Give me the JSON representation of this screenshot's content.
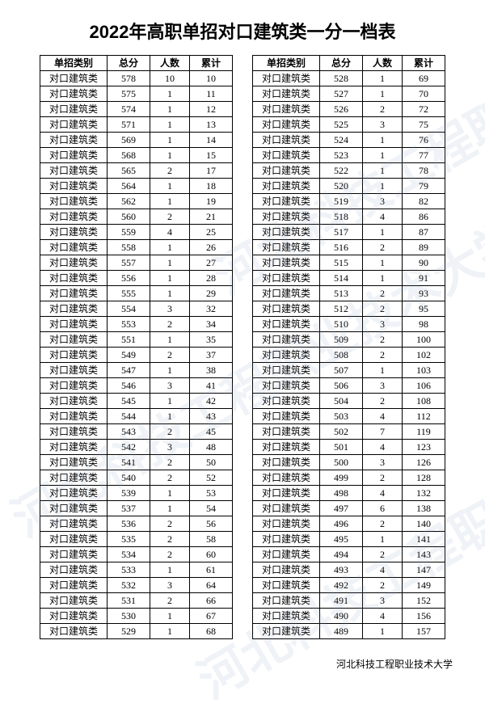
{
  "title": "2022年高职单招对口建筑类一分一档表",
  "footer": "河北科技工程职业技术大学",
  "watermark_text": "河北科技工程职业技术大学",
  "headers": {
    "category": "单招类别",
    "score": "总分",
    "count": "人数",
    "cumulative": "累计"
  },
  "category_label": "对口建筑类",
  "left_rows": [
    {
      "s": 578,
      "c": 10,
      "t": 10
    },
    {
      "s": 575,
      "c": 1,
      "t": 11
    },
    {
      "s": 574,
      "c": 1,
      "t": 12
    },
    {
      "s": 571,
      "c": 1,
      "t": 13
    },
    {
      "s": 569,
      "c": 1,
      "t": 14
    },
    {
      "s": 568,
      "c": 1,
      "t": 15
    },
    {
      "s": 565,
      "c": 2,
      "t": 17
    },
    {
      "s": 564,
      "c": 1,
      "t": 18
    },
    {
      "s": 562,
      "c": 1,
      "t": 19
    },
    {
      "s": 560,
      "c": 2,
      "t": 21
    },
    {
      "s": 559,
      "c": 4,
      "t": 25
    },
    {
      "s": 558,
      "c": 1,
      "t": 26
    },
    {
      "s": 557,
      "c": 1,
      "t": 27
    },
    {
      "s": 556,
      "c": 1,
      "t": 28
    },
    {
      "s": 555,
      "c": 1,
      "t": 29
    },
    {
      "s": 554,
      "c": 3,
      "t": 32
    },
    {
      "s": 553,
      "c": 2,
      "t": 34
    },
    {
      "s": 551,
      "c": 1,
      "t": 35
    },
    {
      "s": 549,
      "c": 2,
      "t": 37
    },
    {
      "s": 547,
      "c": 1,
      "t": 38
    },
    {
      "s": 546,
      "c": 3,
      "t": 41
    },
    {
      "s": 545,
      "c": 1,
      "t": 42
    },
    {
      "s": 544,
      "c": 1,
      "t": 43
    },
    {
      "s": 543,
      "c": 2,
      "t": 45
    },
    {
      "s": 542,
      "c": 3,
      "t": 48
    },
    {
      "s": 541,
      "c": 2,
      "t": 50
    },
    {
      "s": 540,
      "c": 2,
      "t": 52
    },
    {
      "s": 539,
      "c": 1,
      "t": 53
    },
    {
      "s": 537,
      "c": 1,
      "t": 54
    },
    {
      "s": 536,
      "c": 2,
      "t": 56
    },
    {
      "s": 535,
      "c": 2,
      "t": 58
    },
    {
      "s": 534,
      "c": 2,
      "t": 60
    },
    {
      "s": 533,
      "c": 1,
      "t": 61
    },
    {
      "s": 532,
      "c": 3,
      "t": 64
    },
    {
      "s": 531,
      "c": 2,
      "t": 66
    },
    {
      "s": 530,
      "c": 1,
      "t": 67
    },
    {
      "s": 529,
      "c": 1,
      "t": 68
    }
  ],
  "right_rows": [
    {
      "s": 528,
      "c": 1,
      "t": 69
    },
    {
      "s": 527,
      "c": 1,
      "t": 70
    },
    {
      "s": 526,
      "c": 2,
      "t": 72
    },
    {
      "s": 525,
      "c": 3,
      "t": 75
    },
    {
      "s": 524,
      "c": 1,
      "t": 76
    },
    {
      "s": 523,
      "c": 1,
      "t": 77
    },
    {
      "s": 522,
      "c": 1,
      "t": 78
    },
    {
      "s": 520,
      "c": 1,
      "t": 79
    },
    {
      "s": 519,
      "c": 3,
      "t": 82
    },
    {
      "s": 518,
      "c": 4,
      "t": 86
    },
    {
      "s": 517,
      "c": 1,
      "t": 87
    },
    {
      "s": 516,
      "c": 2,
      "t": 89
    },
    {
      "s": 515,
      "c": 1,
      "t": 90
    },
    {
      "s": 514,
      "c": 1,
      "t": 91
    },
    {
      "s": 513,
      "c": 2,
      "t": 93
    },
    {
      "s": 512,
      "c": 2,
      "t": 95
    },
    {
      "s": 510,
      "c": 3,
      "t": 98
    },
    {
      "s": 509,
      "c": 2,
      "t": 100
    },
    {
      "s": 508,
      "c": 2,
      "t": 102
    },
    {
      "s": 507,
      "c": 1,
      "t": 103
    },
    {
      "s": 506,
      "c": 3,
      "t": 106
    },
    {
      "s": 504,
      "c": 2,
      "t": 108
    },
    {
      "s": 503,
      "c": 4,
      "t": 112
    },
    {
      "s": 502,
      "c": 7,
      "t": 119
    },
    {
      "s": 501,
      "c": 4,
      "t": 123
    },
    {
      "s": 500,
      "c": 3,
      "t": 126
    },
    {
      "s": 499,
      "c": 2,
      "t": 128
    },
    {
      "s": 498,
      "c": 4,
      "t": 132
    },
    {
      "s": 497,
      "c": 6,
      "t": 138
    },
    {
      "s": 496,
      "c": 2,
      "t": 140
    },
    {
      "s": 495,
      "c": 1,
      "t": 141
    },
    {
      "s": 494,
      "c": 2,
      "t": 143
    },
    {
      "s": 493,
      "c": 4,
      "t": 147
    },
    {
      "s": 492,
      "c": 2,
      "t": 149
    },
    {
      "s": 491,
      "c": 3,
      "t": 152
    },
    {
      "s": 490,
      "c": 4,
      "t": 156
    },
    {
      "s": 489,
      "c": 1,
      "t": 157
    }
  ]
}
